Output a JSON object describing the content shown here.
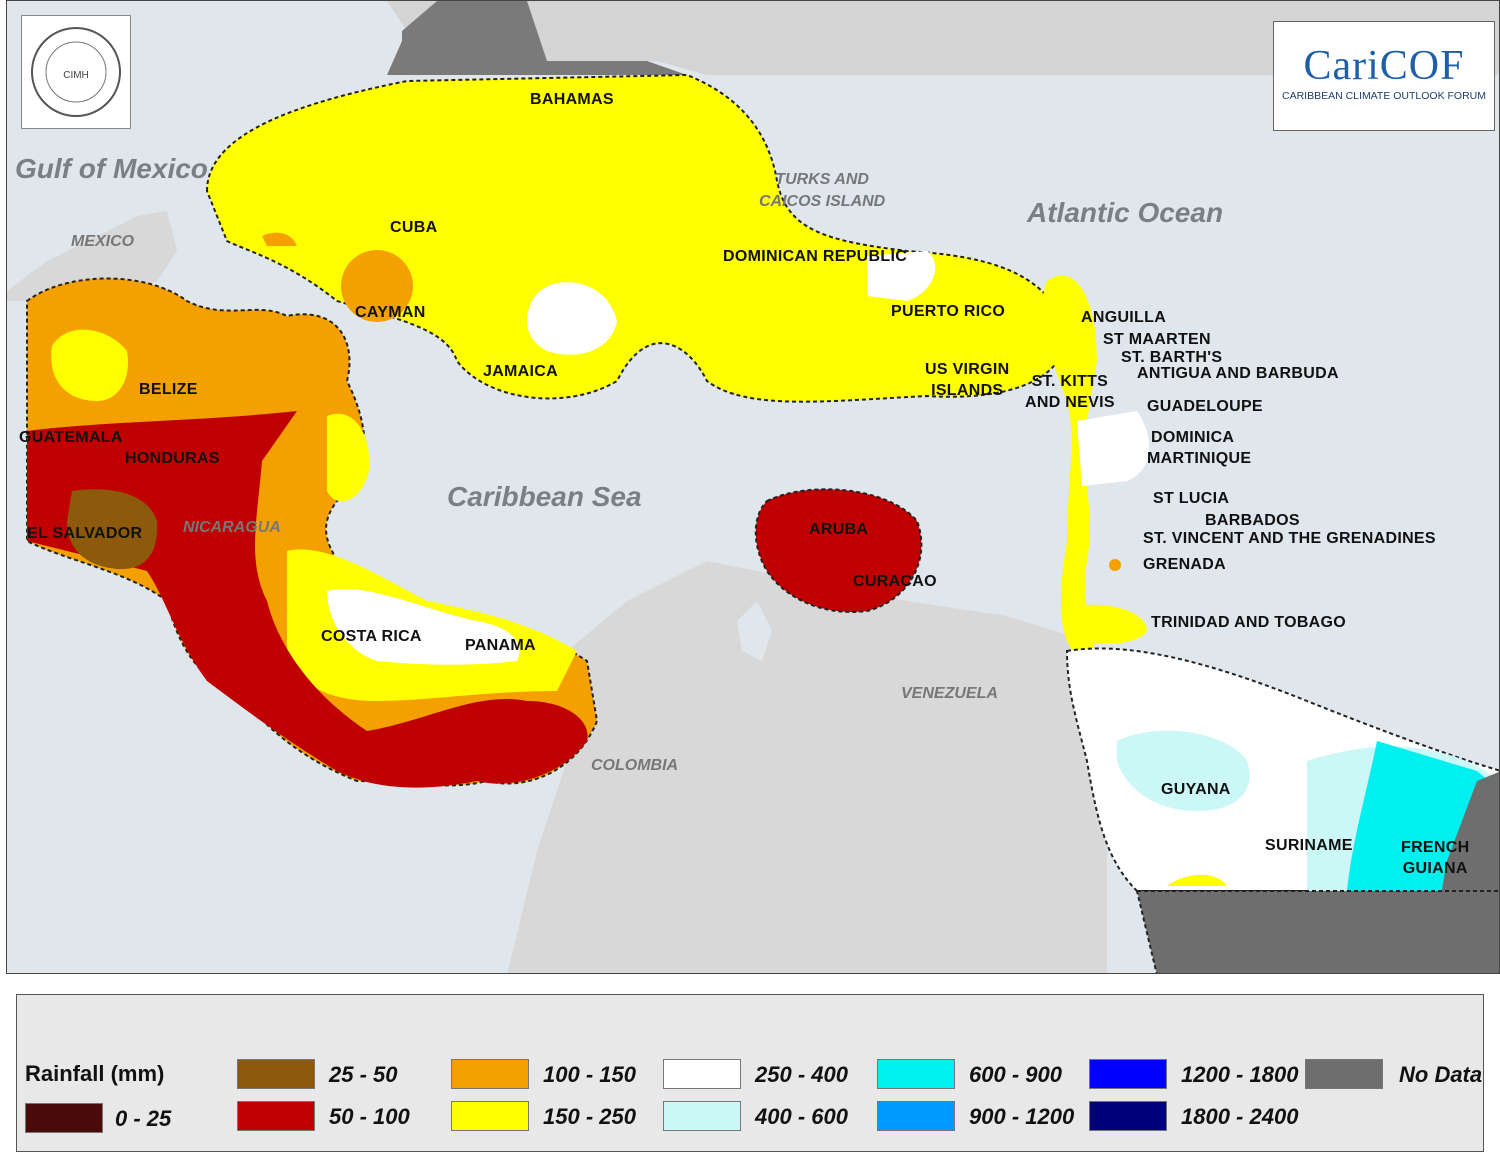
{
  "logos": {
    "left": {
      "name": "Caribbean Institute for Meteorology and Hydrology",
      "text": "CIMH"
    },
    "right": {
      "brand": "CariCOF",
      "brand_main": "Cari",
      "brand_accent": "COF",
      "subtitle": "CARIBBEAN CLIMATE OUTLOOK FORUM"
    }
  },
  "water_bodies": [
    {
      "id": "gulf-of-mexico",
      "label": "Gulf of Mexico"
    },
    {
      "id": "caribbean-sea",
      "label": "Caribbean Sea"
    },
    {
      "id": "atlantic-ocean",
      "label": "Atlantic Ocean"
    }
  ],
  "mainland_labels": [
    {
      "id": "mexico",
      "label": "MEXICO"
    },
    {
      "id": "nicaragua",
      "label": "NICARAGUA"
    },
    {
      "id": "colombia",
      "label": "COLOMBIA"
    },
    {
      "id": "venezuela",
      "label": "VENEZUELA"
    },
    {
      "id": "turks-caicos",
      "label": "TURKS AND\nCAICOS ISLAND"
    }
  ],
  "country_labels": [
    {
      "id": "bahamas",
      "label": "BAHAMAS"
    },
    {
      "id": "cuba",
      "label": "CUBA"
    },
    {
      "id": "cayman",
      "label": "CAYMAN"
    },
    {
      "id": "jamaica",
      "label": "JAMAICA"
    },
    {
      "id": "dominican-republic",
      "label": "DOMINICAN REPUBLIC"
    },
    {
      "id": "puerto-rico",
      "label": "PUERTO RICO"
    },
    {
      "id": "us-virgin-islands",
      "label": "US VIRGIN\nISLANDS"
    },
    {
      "id": "st-kitts-nevis",
      "label": "ST. KITTS\nAND NEVIS"
    },
    {
      "id": "anguilla",
      "label": "ANGUILLA"
    },
    {
      "id": "st-maarten",
      "label": "ST MAARTEN"
    },
    {
      "id": "st-barths",
      "label": "ST. BARTH'S"
    },
    {
      "id": "antigua-barbuda",
      "label": "ANTIGUA AND BARBUDA"
    },
    {
      "id": "guadeloupe",
      "label": "GUADELOUPE"
    },
    {
      "id": "dominica",
      "label": "DOMINICA"
    },
    {
      "id": "martinique",
      "label": "MARTINIQUE"
    },
    {
      "id": "st-lucia",
      "label": "ST LUCIA"
    },
    {
      "id": "barbados",
      "label": "BARBADOS"
    },
    {
      "id": "st-vincent",
      "label": "ST. VINCENT AND THE GRENADINES"
    },
    {
      "id": "grenada",
      "label": "GRENADA"
    },
    {
      "id": "trinidad-tobago",
      "label": "TRINIDAD AND TOBAGO"
    },
    {
      "id": "aruba",
      "label": "ARUBA"
    },
    {
      "id": "curacao",
      "label": "CURACAO"
    },
    {
      "id": "belize",
      "label": "BELIZE"
    },
    {
      "id": "guatemala",
      "label": "GUATEMALA"
    },
    {
      "id": "honduras",
      "label": "HONDURAS"
    },
    {
      "id": "el-salvador",
      "label": "EL SALVADOR"
    },
    {
      "id": "costa-rica",
      "label": "COSTA RICA"
    },
    {
      "id": "panama",
      "label": "PANAMA"
    },
    {
      "id": "guyana",
      "label": "GUYANA"
    },
    {
      "id": "suriname",
      "label": "SURINAME"
    },
    {
      "id": "french-guiana",
      "label": "FRENCH\nGUIANA"
    }
  ],
  "legend": {
    "title": "Rainfall (mm)",
    "items": [
      {
        "id": "r0-25",
        "label": "0 - 25",
        "color": "#4a0a0a"
      },
      {
        "id": "r25-50",
        "label": "25 - 50",
        "color": "#8c5a0a"
      },
      {
        "id": "r50-100",
        "label": "50 - 100",
        "color": "#c00000"
      },
      {
        "id": "r100-150",
        "label": "100 - 150",
        "color": "#f4a000"
      },
      {
        "id": "r150-250",
        "label": "150 - 250",
        "color": "#ffff00"
      },
      {
        "id": "r250-400",
        "label": "250 - 400",
        "color": "#ffffff"
      },
      {
        "id": "r400-600",
        "label": "400 - 600",
        "color": "#ccf7f7"
      },
      {
        "id": "r600-900",
        "label": "600 - 900",
        "color": "#00f0f0"
      },
      {
        "id": "r900-1200",
        "label": "900 - 1200",
        "color": "#0099ff"
      },
      {
        "id": "r1200-1800",
        "label": "1200 - 1800",
        "color": "#0000ff"
      },
      {
        "id": "r1800-2400",
        "label": "1800 - 2400",
        "color": "#00007a"
      },
      {
        "id": "no-data",
        "label": "No Data",
        "color": "#6e6e6e"
      }
    ]
  },
  "colors": {
    "ocean": "#dfe6ec",
    "land": "#d8d8d8",
    "no_data": "#6e6e6e"
  }
}
